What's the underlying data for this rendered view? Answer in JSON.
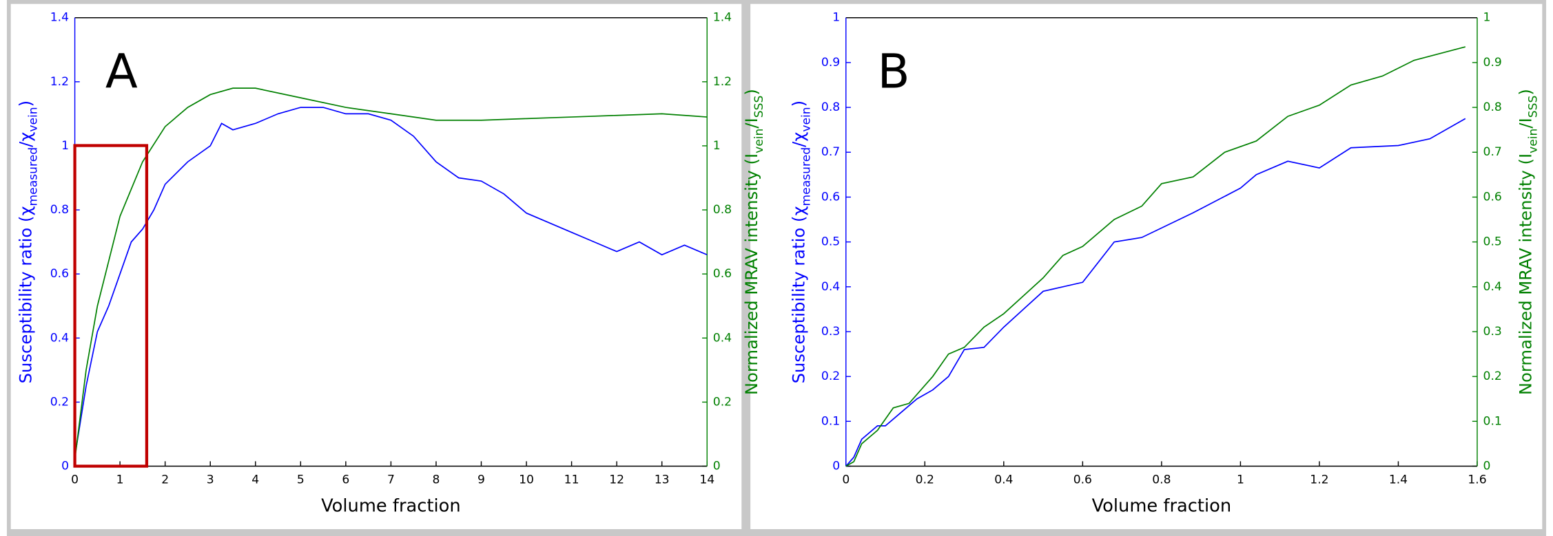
{
  "chart_data": [
    {
      "type": "line",
      "panel_label": "A",
      "x_label": "Volume fraction",
      "y_label": [
        "Susceptibility ratio (χ",
        "measured",
        "/χ",
        "vein",
        ")"
      ],
      "y2_label": [
        "Normalized MRAV intensity (I",
        "vein",
        "/I",
        "SSS",
        ")"
      ],
      "xlim": [
        0,
        14
      ],
      "xticks": [
        0,
        1,
        2,
        3,
        4,
        5,
        6,
        7,
        8,
        9,
        10,
        11,
        12,
        13,
        14
      ],
      "ylim": [
        0,
        1.4
      ],
      "yticks": [
        0,
        0.2,
        0.4,
        0.6,
        0.8,
        1,
        1.2,
        1.4
      ],
      "y2lim": [
        0,
        1.4
      ],
      "y2ticks": [
        0,
        0.2,
        0.4,
        0.6,
        0.8,
        1,
        1.2,
        1.4
      ],
      "series": [
        {
          "color": "#0000ff",
          "axis": "y",
          "x": [
            0,
            0.25,
            0.5,
            0.75,
            1,
            1.25,
            1.5,
            1.75,
            2,
            2.5,
            3,
            3.25,
            3.5,
            4,
            4.5,
            5,
            5.5,
            6,
            6.5,
            7,
            7.5,
            8,
            8.5,
            9,
            9.5,
            10,
            10.5,
            11,
            11.5,
            12,
            12.5,
            13,
            13.5,
            14
          ],
          "values": [
            0.03,
            0.25,
            0.42,
            0.5,
            0.6,
            0.7,
            0.74,
            0.8,
            0.88,
            0.95,
            1.0,
            1.07,
            1.05,
            1.07,
            1.1,
            1.12,
            1.12,
            1.1,
            1.1,
            1.08,
            1.03,
            0.95,
            0.9,
            0.89,
            0.85,
            0.79,
            0.76,
            0.73,
            0.7,
            0.67,
            0.7,
            0.66,
            0.69,
            0.66
          ]
        },
        {
          "color": "#008000",
          "axis": "y2",
          "x": [
            0,
            0.25,
            0.5,
            1,
            1.5,
            2,
            2.5,
            3,
            3.5,
            4,
            5,
            6,
            7,
            8,
            9,
            10,
            11,
            12,
            13,
            14
          ],
          "values": [
            0.02,
            0.3,
            0.5,
            0.78,
            0.95,
            1.06,
            1.12,
            1.16,
            1.18,
            1.18,
            1.15,
            1.12,
            1.1,
            1.08,
            1.08,
            1.085,
            1.09,
            1.095,
            1.1,
            1.09
          ]
        }
      ]
    },
    {
      "type": "line",
      "panel_label": "B",
      "x_label": "Volume fraction",
      "y_label": [
        "Susceptibility ratio (χ",
        "measured",
        "/χ",
        "vein",
        ")"
      ],
      "y2_label": [
        "Normalized MRAV intensity (I",
        "vein",
        "/I",
        "SSS",
        ")"
      ],
      "xlim": [
        0,
        1.6
      ],
      "xticks": [
        0,
        0.2,
        0.4,
        0.6,
        0.8,
        1,
        1.2,
        1.4,
        1.6
      ],
      "ylim": [
        0,
        1
      ],
      "yticks": [
        0,
        0.1,
        0.2,
        0.3,
        0.4,
        0.5,
        0.6,
        0.7,
        0.8,
        0.9,
        1
      ],
      "y2lim": [
        0,
        1
      ],
      "y2ticks": [
        0,
        0.1,
        0.2,
        0.3,
        0.4,
        0.5,
        0.6,
        0.7,
        0.8,
        0.9,
        1
      ],
      "series": [
        {
          "color": "#0000ff",
          "axis": "y",
          "x": [
            0,
            0.02,
            0.04,
            0.08,
            0.1,
            0.14,
            0.18,
            0.22,
            0.26,
            0.3,
            0.35,
            0.4,
            0.45,
            0.5,
            0.55,
            0.6,
            0.68,
            0.75,
            0.88,
            1,
            1.04,
            1.12,
            1.2,
            1.28,
            1.4,
            1.48,
            1.57
          ],
          "values": [
            0,
            0.02,
            0.06,
            0.09,
            0.09,
            0.12,
            0.15,
            0.17,
            0.2,
            0.26,
            0.265,
            0.31,
            0.35,
            0.39,
            0.4,
            0.41,
            0.5,
            0.51,
            0.565,
            0.62,
            0.65,
            0.68,
            0.665,
            0.71,
            0.715,
            0.73,
            0.775
          ]
        },
        {
          "color": "#008000",
          "axis": "y2",
          "x": [
            0,
            0.02,
            0.04,
            0.08,
            0.12,
            0.16,
            0.2,
            0.22,
            0.26,
            0.3,
            0.35,
            0.4,
            0.45,
            0.5,
            0.55,
            0.6,
            0.68,
            0.75,
            0.8,
            0.88,
            0.96,
            1.04,
            1.12,
            1.2,
            1.28,
            1.36,
            1.44,
            1.57
          ],
          "values": [
            0,
            0.01,
            0.05,
            0.08,
            0.13,
            0.14,
            0.18,
            0.2,
            0.25,
            0.265,
            0.31,
            0.34,
            0.38,
            0.42,
            0.47,
            0.49,
            0.55,
            0.58,
            0.63,
            0.645,
            0.7,
            0.725,
            0.78,
            0.805,
            0.85,
            0.87,
            0.905,
            0.935
          ]
        }
      ]
    }
  ]
}
